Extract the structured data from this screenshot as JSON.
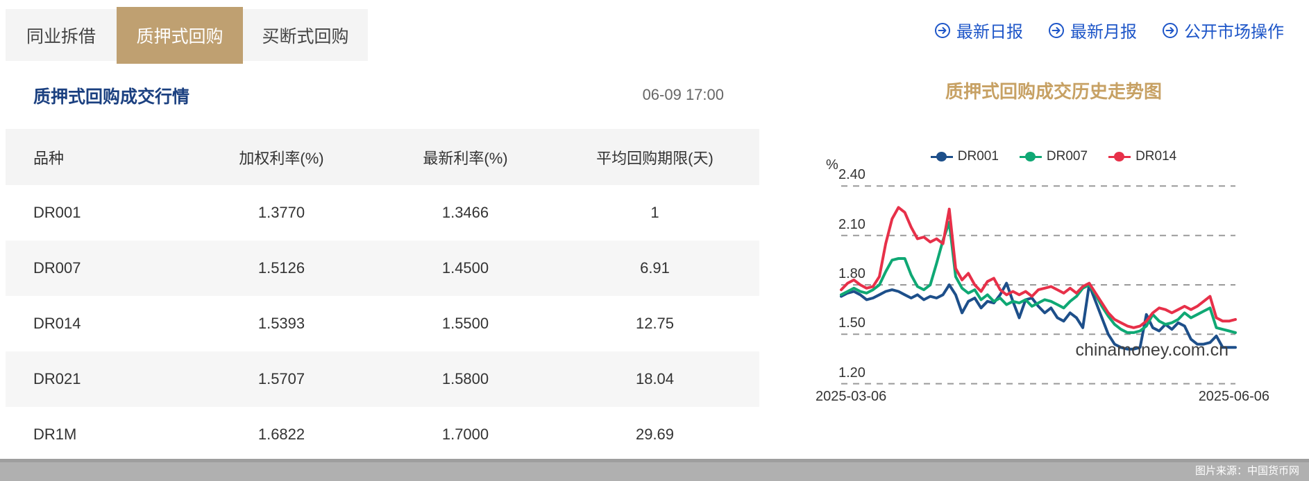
{
  "tabs": [
    {
      "label": "同业拆借",
      "active": false
    },
    {
      "label": "质押式回购",
      "active": true
    },
    {
      "label": "买断式回购",
      "active": false
    }
  ],
  "left_panel": {
    "title": "质押式回购成交行情",
    "timestamp": "06-09 17:00"
  },
  "table": {
    "headers": [
      "品种",
      "加权利率(%)",
      "最新利率(%)",
      "平均回购期限(天)"
    ],
    "rows": [
      [
        "DR001",
        "1.3770",
        "1.3466",
        "1"
      ],
      [
        "DR007",
        "1.5126",
        "1.4500",
        "6.91"
      ],
      [
        "DR014",
        "1.5393",
        "1.5500",
        "12.75"
      ],
      [
        "DR021",
        "1.5707",
        "1.5800",
        "18.04"
      ],
      [
        "DR1M",
        "1.6822",
        "1.7000",
        "29.69"
      ]
    ]
  },
  "links": [
    {
      "label": "最新日报"
    },
    {
      "label": "最新月报"
    },
    {
      "label": "公开市场操作"
    }
  ],
  "chart_data": {
    "type": "line",
    "title": "质押式回购成交历史走势图",
    "unit_label": "%",
    "x_start_label": "2025-03-06",
    "x_end_label": "2025-06-06",
    "ylim": [
      1.2,
      2.4
    ],
    "yticks": [
      "2.40",
      "2.10",
      "1.80",
      "1.50",
      "1.20"
    ],
    "grid": "dashed-horizontal",
    "legend_position": "top-center",
    "watermark": "chinamoney.com.cn",
    "series": [
      {
        "name": "DR001",
        "color": "#1d4f8a",
        "values": [
          1.73,
          1.75,
          1.76,
          1.74,
          1.71,
          1.72,
          1.74,
          1.76,
          1.77,
          1.76,
          1.74,
          1.72,
          1.74,
          1.71,
          1.73,
          1.72,
          1.74,
          1.8,
          1.74,
          1.63,
          1.7,
          1.72,
          1.66,
          1.7,
          1.69,
          1.74,
          1.81,
          1.7,
          1.6,
          1.71,
          1.72,
          1.67,
          1.63,
          1.66,
          1.6,
          1.58,
          1.63,
          1.6,
          1.54,
          1.8,
          1.7,
          1.6,
          1.5,
          1.44,
          1.42,
          1.41,
          1.41,
          1.42,
          1.62,
          1.54,
          1.52,
          1.56,
          1.53,
          1.57,
          1.55,
          1.47,
          1.44,
          1.44,
          1.45,
          1.49,
          1.42,
          1.42,
          1.42
        ]
      },
      {
        "name": "DR007",
        "color": "#0fa874",
        "values": [
          1.74,
          1.76,
          1.78,
          1.76,
          1.75,
          1.77,
          1.8,
          1.88,
          1.95,
          1.96,
          1.96,
          1.86,
          1.79,
          1.77,
          1.8,
          1.93,
          2.07,
          2.18,
          1.85,
          1.78,
          1.75,
          1.77,
          1.71,
          1.74,
          1.7,
          1.72,
          1.68,
          1.7,
          1.69,
          1.71,
          1.67,
          1.69,
          1.71,
          1.7,
          1.68,
          1.66,
          1.7,
          1.73,
          1.78,
          1.8,
          1.74,
          1.67,
          1.61,
          1.56,
          1.53,
          1.51,
          1.51,
          1.52,
          1.55,
          1.62,
          1.58,
          1.56,
          1.57,
          1.59,
          1.63,
          1.6,
          1.62,
          1.64,
          1.66,
          1.54,
          1.53,
          1.52,
          1.51
        ]
      },
      {
        "name": "DR014",
        "color": "#e73049",
        "values": [
          1.77,
          1.81,
          1.83,
          1.8,
          1.78,
          1.79,
          1.85,
          2.05,
          2.2,
          2.27,
          2.24,
          2.15,
          2.08,
          2.09,
          2.06,
          2.08,
          2.05,
          2.26,
          1.9,
          1.83,
          1.87,
          1.8,
          1.76,
          1.82,
          1.84,
          1.77,
          1.74,
          1.76,
          1.74,
          1.76,
          1.73,
          1.77,
          1.78,
          1.79,
          1.77,
          1.75,
          1.78,
          1.75,
          1.79,
          1.81,
          1.75,
          1.69,
          1.63,
          1.59,
          1.57,
          1.55,
          1.54,
          1.55,
          1.58,
          1.63,
          1.66,
          1.65,
          1.63,
          1.65,
          1.67,
          1.65,
          1.67,
          1.7,
          1.73,
          1.6,
          1.58,
          1.58,
          1.59
        ]
      }
    ]
  },
  "caption": "图片来源：中国货币网",
  "colors": {
    "accent_gold": "#bfa071",
    "chart_title_gold": "#c7a164",
    "title_navy": "#1b4080",
    "link_blue": "#1e56c8",
    "grid_gray": "#999999"
  }
}
